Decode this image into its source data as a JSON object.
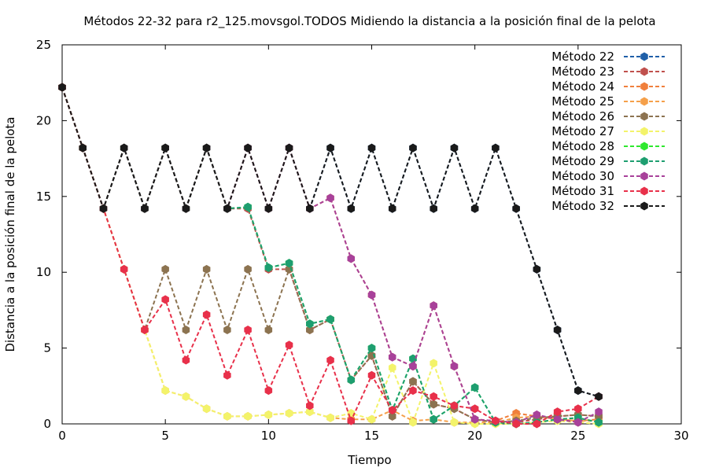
{
  "chart_data": {
    "type": "line",
    "title": "Métodos 22-32 para r2_125.movsgol.TODOS Midiendo la distancia a la posición final de la pelota",
    "xlabel": "Tiempo",
    "ylabel": "Distancia a la posición final de la pelota",
    "xlim": [
      0,
      30
    ],
    "ylim": [
      0,
      25
    ],
    "xticks": [
      0,
      5,
      10,
      15,
      20,
      25,
      30
    ],
    "yticks": [
      0,
      5,
      10,
      15,
      20,
      25
    ],
    "grid": false,
    "legend_position": "top-right",
    "series": [
      {
        "name": "Método 22",
        "color": "#1f5fa8",
        "x": [
          0,
          1,
          2,
          3,
          4,
          5,
          6,
          7,
          8,
          9,
          10,
          11,
          12,
          13,
          14,
          15,
          16,
          17,
          18,
          19,
          20,
          21,
          22,
          23,
          24,
          25,
          26
        ],
        "values": [
          22.2,
          18.2,
          14.2,
          18.2,
          14.2,
          18.2,
          14.2,
          18.2,
          14.2,
          18.2,
          14.2,
          18.2,
          14.2,
          18.2,
          14.2,
          18.2,
          14.2,
          18.2,
          14.2,
          18.2,
          14.2,
          18.2,
          14.2,
          10.2,
          6.2,
          2.2,
          1.8
        ]
      },
      {
        "name": "Método 23",
        "color": "#c0504d",
        "x": [
          0,
          1,
          2,
          3,
          4,
          5,
          6,
          7,
          8,
          9,
          10,
          11,
          12,
          13,
          14,
          15,
          16,
          17,
          18,
          19,
          20,
          21,
          22,
          23,
          24,
          25,
          26
        ],
        "values": [
          22.2,
          18.2,
          14.2,
          18.2,
          14.2,
          18.2,
          14.2,
          18.2,
          14.2,
          14.2,
          10.2,
          10.2,
          6.2,
          6.9,
          2.9,
          4.5,
          0.5,
          2.8,
          1.3,
          1.0,
          0.3,
          0.1,
          0.1,
          0.3,
          0.5,
          0.6,
          0.5
        ]
      },
      {
        "name": "Método 24",
        "color": "#f07f3c",
        "x": [
          0,
          1,
          2,
          3,
          4,
          5,
          6,
          7,
          8,
          9,
          10,
          11,
          12,
          13,
          14,
          15,
          16,
          17,
          18,
          19,
          20,
          21,
          22,
          23,
          24,
          25,
          26
        ],
        "values": [
          22.2,
          18.2,
          14.2,
          18.2,
          14.2,
          18.2,
          14.2,
          18.2,
          14.2,
          18.2,
          14.2,
          18.2,
          14.2,
          14.9,
          10.9,
          8.5,
          4.4,
          3.8,
          7.8,
          3.8,
          0.3,
          0.2,
          0.7,
          0.5,
          0.3,
          0.2,
          0.3
        ]
      },
      {
        "name": "Método 25",
        "color": "#f5a04a",
        "x": [
          0,
          1,
          2,
          3,
          4,
          5,
          6,
          7,
          8,
          9,
          10,
          11,
          12,
          13,
          14,
          15,
          16,
          17,
          18,
          19,
          20,
          21,
          22,
          23,
          24,
          25,
          26
        ],
        "values": [
          22.2,
          18.2,
          14.2,
          10.2,
          6.2,
          2.2,
          1.8,
          1.0,
          0.5,
          0.5,
          0.6,
          0.7,
          0.8,
          0.4,
          0.3,
          0.3,
          0.9,
          0.2,
          0.3,
          0.1,
          0.1,
          0.1,
          0.4,
          0.5,
          0.3,
          0.2,
          0.2
        ]
      },
      {
        "name": "Método 26",
        "color": "#8c7350",
        "x": [
          0,
          1,
          2,
          3,
          4,
          5,
          6,
          7,
          8,
          9,
          10,
          11,
          12,
          13,
          14,
          15,
          16,
          17,
          18,
          19,
          20,
          21,
          22,
          23,
          24,
          25,
          26
        ],
        "values": [
          22.2,
          18.2,
          14.2,
          10.2,
          6.2,
          10.2,
          6.2,
          10.2,
          6.2,
          10.2,
          6.2,
          10.2,
          6.2,
          6.9,
          2.9,
          4.5,
          0.5,
          2.8,
          1.3,
          1.0,
          0.3,
          0.1,
          0.2,
          0.4,
          0.5,
          0.6,
          0.5
        ]
      },
      {
        "name": "Método 27",
        "color": "#f3f36a",
        "x": [
          0,
          1,
          2,
          3,
          4,
          5,
          6,
          7,
          8,
          9,
          10,
          11,
          12,
          13,
          14,
          15,
          16,
          17,
          18,
          19,
          20,
          21,
          22,
          23,
          24,
          25,
          26
        ],
        "values": [
          22.2,
          18.2,
          14.2,
          10.2,
          6.2,
          2.2,
          1.8,
          1.0,
          0.5,
          0.5,
          0.6,
          0.7,
          0.8,
          0.4,
          0.7,
          0.3,
          3.7,
          0.1,
          4.0,
          0.1,
          0.0,
          0.0,
          0.0,
          0.1,
          0.2,
          0.1,
          0.0
        ]
      },
      {
        "name": "Método 28",
        "color": "#2ee82e",
        "x": [
          0,
          1,
          2,
          3,
          4,
          5,
          6,
          7,
          8,
          9,
          10,
          11,
          12,
          13,
          14,
          15,
          16,
          17,
          18,
          19,
          20,
          21,
          22,
          23,
          24,
          25,
          26
        ],
        "values": [
          22.2,
          18.2,
          14.2,
          18.2,
          14.2,
          18.2,
          14.2,
          18.2,
          14.2,
          14.3,
          10.3,
          10.6,
          6.6,
          6.9,
          2.9,
          5.0,
          0.9,
          4.3,
          0.3,
          1.2,
          2.4,
          0.1,
          0.0,
          0.1,
          0.3,
          0.4,
          0.1
        ]
      },
      {
        "name": "Método 29",
        "color": "#1e9e70",
        "x": [
          0,
          1,
          2,
          3,
          4,
          5,
          6,
          7,
          8,
          9,
          10,
          11,
          12,
          13,
          14,
          15,
          16,
          17,
          18,
          19,
          20,
          21,
          22,
          23,
          24,
          25,
          26
        ],
        "values": [
          22.2,
          18.2,
          14.2,
          18.2,
          14.2,
          18.2,
          14.2,
          18.2,
          14.2,
          14.3,
          10.3,
          10.6,
          6.6,
          6.9,
          2.9,
          5.0,
          0.9,
          4.3,
          0.3,
          1.2,
          2.4,
          0.1,
          0.0,
          0.1,
          0.3,
          0.4,
          0.1
        ]
      },
      {
        "name": "Método 30",
        "color": "#a8419a",
        "x": [
          0,
          1,
          2,
          3,
          4,
          5,
          6,
          7,
          8,
          9,
          10,
          11,
          12,
          13,
          14,
          15,
          16,
          17,
          18,
          19,
          20,
          21,
          22,
          23,
          24,
          25,
          26
        ],
        "values": [
          22.2,
          18.2,
          14.2,
          18.2,
          14.2,
          18.2,
          14.2,
          18.2,
          14.2,
          18.2,
          14.2,
          18.2,
          14.2,
          14.9,
          10.9,
          8.5,
          4.4,
          3.8,
          7.8,
          3.8,
          0.3,
          0.2,
          0.1,
          0.6,
          0.3,
          0.1,
          0.8
        ]
      },
      {
        "name": "Método 31",
        "color": "#e8304a",
        "x": [
          0,
          1,
          2,
          3,
          4,
          5,
          6,
          7,
          8,
          9,
          10,
          11,
          12,
          13,
          14,
          15,
          16,
          17,
          18,
          19,
          20,
          21,
          22,
          23,
          24,
          25,
          26
        ],
        "values": [
          22.2,
          18.2,
          14.2,
          10.2,
          6.2,
          8.2,
          4.2,
          7.2,
          3.2,
          6.2,
          2.2,
          5.2,
          1.2,
          4.2,
          0.2,
          3.2,
          0.9,
          2.2,
          1.8,
          1.2,
          1.0,
          0.2,
          0.0,
          0.0,
          0.8,
          1.0,
          1.8
        ]
      },
      {
        "name": "Método 32",
        "color": "#1a1a1a",
        "x": [
          0,
          1,
          2,
          3,
          4,
          5,
          6,
          7,
          8,
          9,
          10,
          11,
          12,
          13,
          14,
          15,
          16,
          17,
          18,
          19,
          20,
          21,
          22,
          23,
          24,
          25,
          26
        ],
        "values": [
          22.2,
          18.2,
          14.2,
          18.2,
          14.2,
          18.2,
          14.2,
          18.2,
          14.2,
          18.2,
          14.2,
          18.2,
          14.2,
          18.2,
          14.2,
          18.2,
          14.2,
          18.2,
          14.2,
          18.2,
          14.2,
          18.2,
          14.2,
          10.2,
          6.2,
          2.2,
          1.8
        ]
      }
    ]
  }
}
